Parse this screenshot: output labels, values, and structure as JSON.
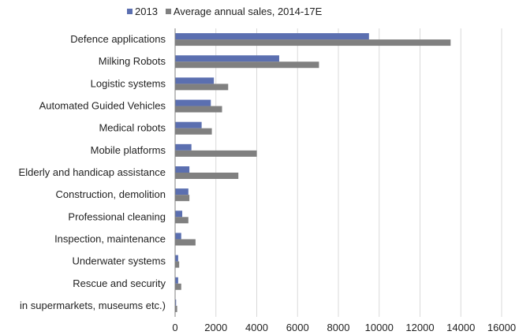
{
  "chart_data": {
    "type": "bar",
    "orientation": "horizontal",
    "categories": [
      "Defence applications",
      "Milking Robots",
      "Logistic systems",
      "Automated Guided Vehicles",
      "Medical robots",
      "Mobile platforms",
      "Elderly and handicap assistance",
      "Construction, demolition",
      "Professional cleaning",
      "Inspection, maintenance",
      "Underwater systems",
      "Rescue and security",
      "in supermarkets, museums etc.)"
    ],
    "series": [
      {
        "name": "2013",
        "color": "#5b6fb0",
        "values": [
          9500,
          5100,
          1900,
          1750,
          1300,
          800,
          700,
          650,
          350,
          300,
          150,
          150,
          50
        ]
      },
      {
        "name": "Average annual sales, 2014-17E",
        "color": "#808080",
        "values": [
          13500,
          7050,
          2600,
          2300,
          1800,
          4000,
          3100,
          700,
          650,
          1000,
          200,
          300,
          100
        ]
      }
    ],
    "xlim": [
      0,
      16000
    ],
    "xticks": [
      0,
      2000,
      4000,
      6000,
      8000,
      10000,
      12000,
      14000,
      16000
    ],
    "grid": "vertical",
    "legend_position": "top"
  }
}
